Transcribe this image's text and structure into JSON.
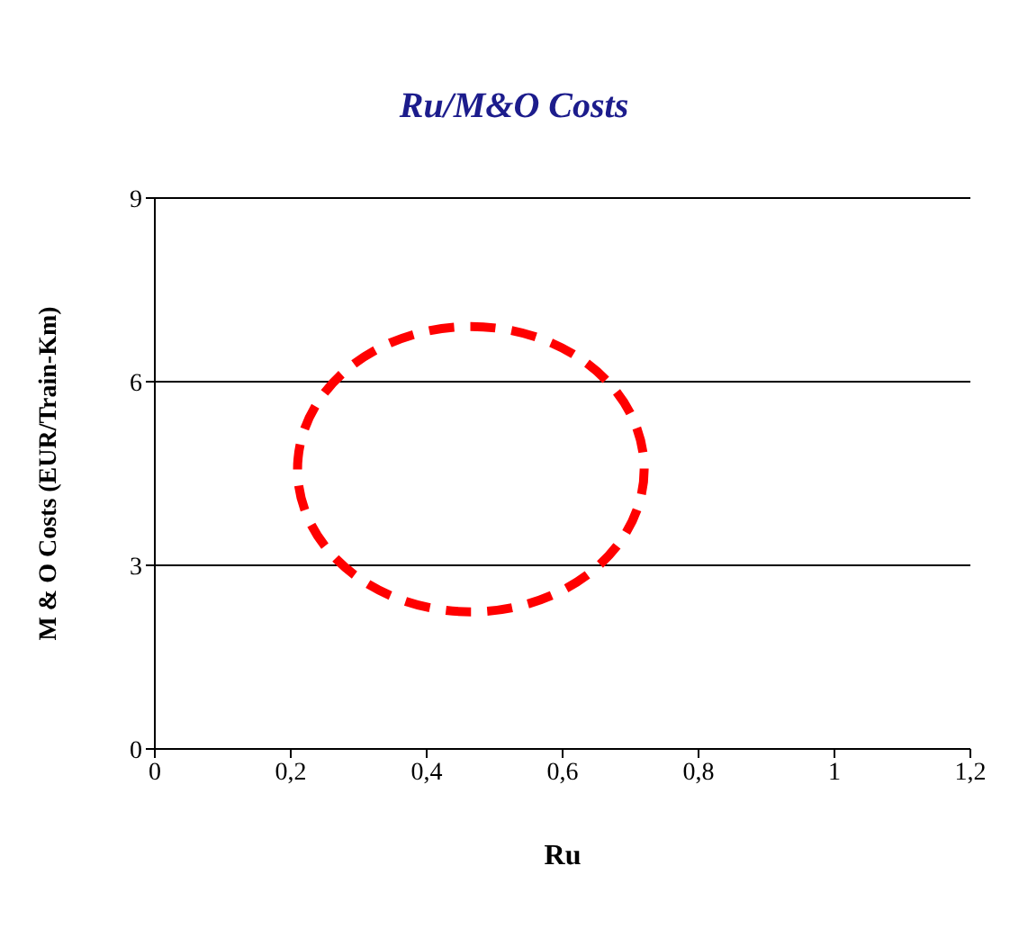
{
  "chart_data": {
    "type": "scatter",
    "title": "Ru/M&O Costs",
    "xlabel": "Ru",
    "ylabel": "M  & O Costs (EUR/Train-Km)",
    "grid": "y",
    "xlim": [
      0,
      1.2
    ],
    "xticks": [
      0,
      {
        "value": 0.2,
        "label": "0,2"
      },
      {
        "value": 0.4,
        "label": "0,4"
      },
      {
        "value": 0.6,
        "label": "0,6"
      },
      {
        "value": 0.8,
        "label": "0,8"
      },
      1,
      {
        "value": 1.2,
        "label": "1,2"
      }
    ],
    "ylim": [
      0,
      9
    ],
    "yticks": [
      0,
      3,
      6,
      9
    ]
  }
}
